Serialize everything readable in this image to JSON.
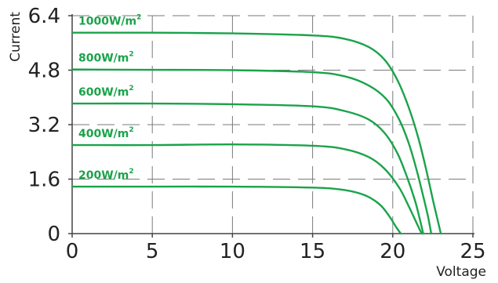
{
  "chart_data": {
    "type": "line",
    "title": "",
    "xlabel": "Voltage",
    "ylabel": "Current",
    "xlim": [
      0,
      25
    ],
    "ylim": [
      0,
      6.4
    ],
    "x_ticks": [
      "0",
      "5",
      "10",
      "15",
      "20",
      "25"
    ],
    "y_ticks": [
      "0",
      "1.6",
      "3.2",
      "4.8",
      "6.4"
    ],
    "grid": true,
    "series_color": "#1aa34a",
    "series": [
      {
        "label": "1000W/m",
        "label_sup": "2",
        "x": [
          0,
          5,
          10,
          15,
          17,
          18.5,
          19.5,
          20.3,
          21,
          21.6,
          22.1,
          22.5,
          22.8,
          23.0
        ],
        "y": [
          5.9,
          5.9,
          5.88,
          5.82,
          5.72,
          5.48,
          5.1,
          4.5,
          3.7,
          2.8,
          1.85,
          1.0,
          0.4,
          0
        ]
      },
      {
        "label": "800W/m",
        "label_sup": "2",
        "x": [
          0,
          5,
          10,
          15,
          17,
          18.5,
          19.6,
          20.4,
          21,
          21.5,
          21.9,
          22.2,
          22.4
        ],
        "y": [
          4.82,
          4.81,
          4.8,
          4.74,
          4.62,
          4.35,
          3.95,
          3.35,
          2.65,
          1.85,
          1.1,
          0.5,
          0
        ]
      },
      {
        "label": "600W/m",
        "label_sup": "2",
        "x": [
          0,
          5,
          10,
          15,
          17,
          18.5,
          19.5,
          20.3,
          20.9,
          21.4,
          21.7,
          21.9
        ],
        "y": [
          3.82,
          3.82,
          3.8,
          3.74,
          3.6,
          3.35,
          2.95,
          2.35,
          1.65,
          0.95,
          0.4,
          0
        ]
      },
      {
        "label": "400W/m",
        "label_sup": "2",
        "x": [
          0,
          5,
          10,
          15,
          17,
          18.5,
          19.5,
          20.4,
          21,
          21.5,
          21.8
        ],
        "y": [
          2.6,
          2.6,
          2.62,
          2.58,
          2.48,
          2.25,
          1.9,
          1.35,
          0.8,
          0.3,
          0
        ]
      },
      {
        "label": "200W/m",
        "label_sup": "2",
        "x": [
          0,
          5,
          10,
          15,
          17,
          18.3,
          19.2,
          19.8,
          20.2,
          20.5
        ],
        "y": [
          1.38,
          1.38,
          1.38,
          1.35,
          1.28,
          1.12,
          0.85,
          0.5,
          0.2,
          0
        ]
      }
    ]
  }
}
